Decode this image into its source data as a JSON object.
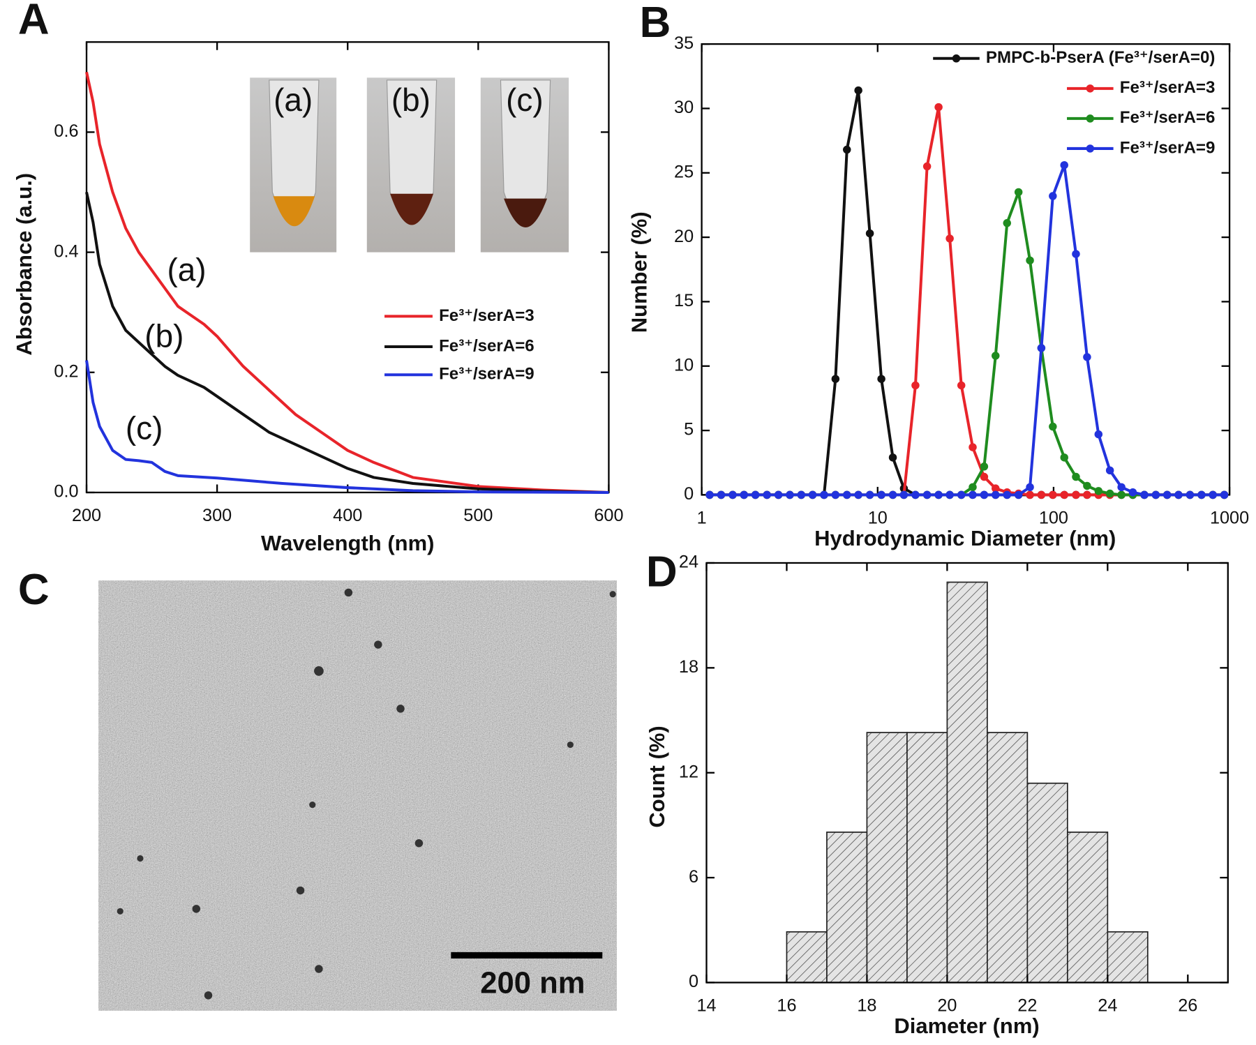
{
  "chart_data": [
    {
      "type": "line",
      "panel": "A",
      "x_label": "Wavelength (nm)",
      "y_label": "Absorbance (a.u.)",
      "xlim": [
        200,
        600
      ],
      "xticks": [
        200,
        300,
        400,
        500,
        600
      ],
      "ylim": [
        0,
        0.75
      ],
      "yticks": [
        {
          "value": 0,
          "label": "0.0"
        },
        0.2,
        0.4,
        0.6
      ],
      "legend": "right",
      "series": [
        {
          "name": "Fe³⁺/serA=3",
          "color": "#e8242a",
          "x": [
            200,
            205,
            210,
            220,
            230,
            240,
            250,
            260,
            270,
            280,
            290,
            300,
            320,
            340,
            360,
            380,
            400,
            420,
            450,
            500,
            550,
            600
          ],
          "values": [
            0.7,
            0.65,
            0.58,
            0.5,
            0.44,
            0.4,
            0.37,
            0.34,
            0.31,
            0.295,
            0.28,
            0.26,
            0.21,
            0.17,
            0.13,
            0.1,
            0.07,
            0.05,
            0.025,
            0.01,
            0.004,
            0.0
          ]
        },
        {
          "name": "Fe³⁺/serA=6",
          "color": "#111111",
          "x": [
            200,
            205,
            210,
            220,
            230,
            240,
            250,
            260,
            270,
            280,
            290,
            300,
            320,
            340,
            360,
            380,
            400,
            420,
            450,
            500,
            550,
            600
          ],
          "values": [
            0.5,
            0.45,
            0.38,
            0.31,
            0.27,
            0.25,
            0.23,
            0.21,
            0.195,
            0.185,
            0.175,
            0.16,
            0.13,
            0.1,
            0.08,
            0.06,
            0.04,
            0.025,
            0.015,
            0.006,
            0.002,
            0.0
          ]
        },
        {
          "name": "Fe³⁺/serA=9",
          "color": "#2233dd",
          "x": [
            200,
            205,
            210,
            220,
            230,
            240,
            250,
            260,
            270,
            300,
            350,
            400,
            450,
            500,
            600
          ],
          "values": [
            0.22,
            0.15,
            0.11,
            0.07,
            0.055,
            0.053,
            0.05,
            0.035,
            0.028,
            0.024,
            0.015,
            0.008,
            0.003,
            0.001,
            0.0
          ]
        }
      ],
      "annotations": [
        "(a)",
        "(b)",
        "(c)"
      ],
      "inset_labels": [
        "(a)",
        "(b)",
        "(c)"
      ]
    },
    {
      "type": "line",
      "panel": "B",
      "x_label": "Hydrodynamic Diameter (nm)",
      "y_label": "Number (%)",
      "log_x": true,
      "markers": true,
      "xlim": [
        1,
        1000
      ],
      "xticks": [
        1,
        10,
        100,
        1000
      ],
      "ylim": [
        0,
        35
      ],
      "yticks": [
        0,
        5,
        10,
        15,
        20,
        25,
        30,
        35
      ],
      "legend": "upper right",
      "x": [
        1.11,
        1.29,
        1.5,
        1.74,
        2.02,
        2.35,
        2.73,
        3.17,
        3.68,
        4.27,
        4.96,
        5.76,
        6.69,
        7.77,
        9.03,
        10.5,
        12.2,
        14.1,
        16.4,
        19.1,
        22.2,
        25.7,
        29.9,
        34.7,
        40.3,
        46.8,
        54.4,
        63.2,
        73.4,
        85.2,
        99.0,
        115,
        134,
        155,
        180,
        209,
        243,
        282,
        328,
        381,
        442,
        513,
        596,
        693,
        804,
        934
      ],
      "series": [
        {
          "name": "PMPC-b-PserA (Fe³⁺/serA=0)",
          "color": "#111111",
          "values": [
            0,
            0,
            0,
            0,
            0,
            0,
            0,
            0,
            0,
            0,
            0,
            9,
            26.8,
            31.4,
            20.3,
            9,
            2.9,
            0.5,
            0,
            0,
            0,
            0,
            0,
            0,
            0,
            0,
            0,
            0,
            0,
            0,
            0,
            0,
            0,
            0,
            0,
            0,
            0,
            0,
            0,
            0,
            0,
            0,
            0,
            0,
            0,
            0
          ]
        },
        {
          "name": "Fe³⁺/serA=3",
          "color": "#e8242a",
          "values": [
            0,
            0,
            0,
            0,
            0,
            0,
            0,
            0,
            0,
            0,
            0,
            0,
            0,
            0,
            0,
            0,
            0,
            0,
            8.5,
            25.5,
            30.1,
            19.9,
            8.5,
            3.7,
            1.4,
            0.5,
            0.2,
            0.1,
            0,
            0,
            0,
            0,
            0,
            0,
            0,
            0,
            0,
            0,
            0,
            0,
            0,
            0,
            0,
            0,
            0,
            0
          ]
        },
        {
          "name": "Fe³⁺/serA=6",
          "color": "#1f8c1f",
          "values": [
            0,
            0,
            0,
            0,
            0,
            0,
            0,
            0,
            0,
            0,
            0,
            0,
            0,
            0,
            0,
            0,
            0,
            0,
            0,
            0,
            0,
            0,
            0,
            0.6,
            2.2,
            10.8,
            21.1,
            23.5,
            18.2,
            11.4,
            5.3,
            2.9,
            1.4,
            0.7,
            0.3,
            0.1,
            0,
            0,
            0,
            0,
            0,
            0,
            0,
            0,
            0,
            0
          ]
        },
        {
          "name": "Fe³⁺/serA=9",
          "color": "#2233dd",
          "values": [
            0,
            0,
            0,
            0,
            0,
            0,
            0,
            0,
            0,
            0,
            0,
            0,
            0,
            0,
            0,
            0,
            0,
            0,
            0,
            0,
            0,
            0,
            0,
            0,
            0,
            0,
            0,
            0,
            0.6,
            11.4,
            23.2,
            25.6,
            18.7,
            10.7,
            4.7,
            1.9,
            0.6,
            0.2,
            0,
            0,
            0,
            0,
            0,
            0,
            0,
            0
          ]
        }
      ]
    },
    {
      "type": "image",
      "panel": "C",
      "scale_bar": "200 nm"
    },
    {
      "type": "histogram",
      "panel": "D",
      "x_label": "Diameter (nm)",
      "y_label": "Count (%)",
      "xlim": [
        14,
        27
      ],
      "xticks": [
        14,
        16,
        18,
        20,
        22,
        24,
        26
      ],
      "ylim": [
        0,
        24
      ],
      "yticks": [
        0,
        6,
        12,
        18,
        24
      ],
      "bins": [
        16,
        17,
        18,
        19,
        20,
        21,
        22,
        23,
        24,
        25
      ],
      "counts": [
        2.9,
        8.6,
        14.3,
        14.3,
        22.9,
        14.3,
        11.4,
        8.6,
        2.9
      ],
      "color": "#dddddd"
    }
  ]
}
